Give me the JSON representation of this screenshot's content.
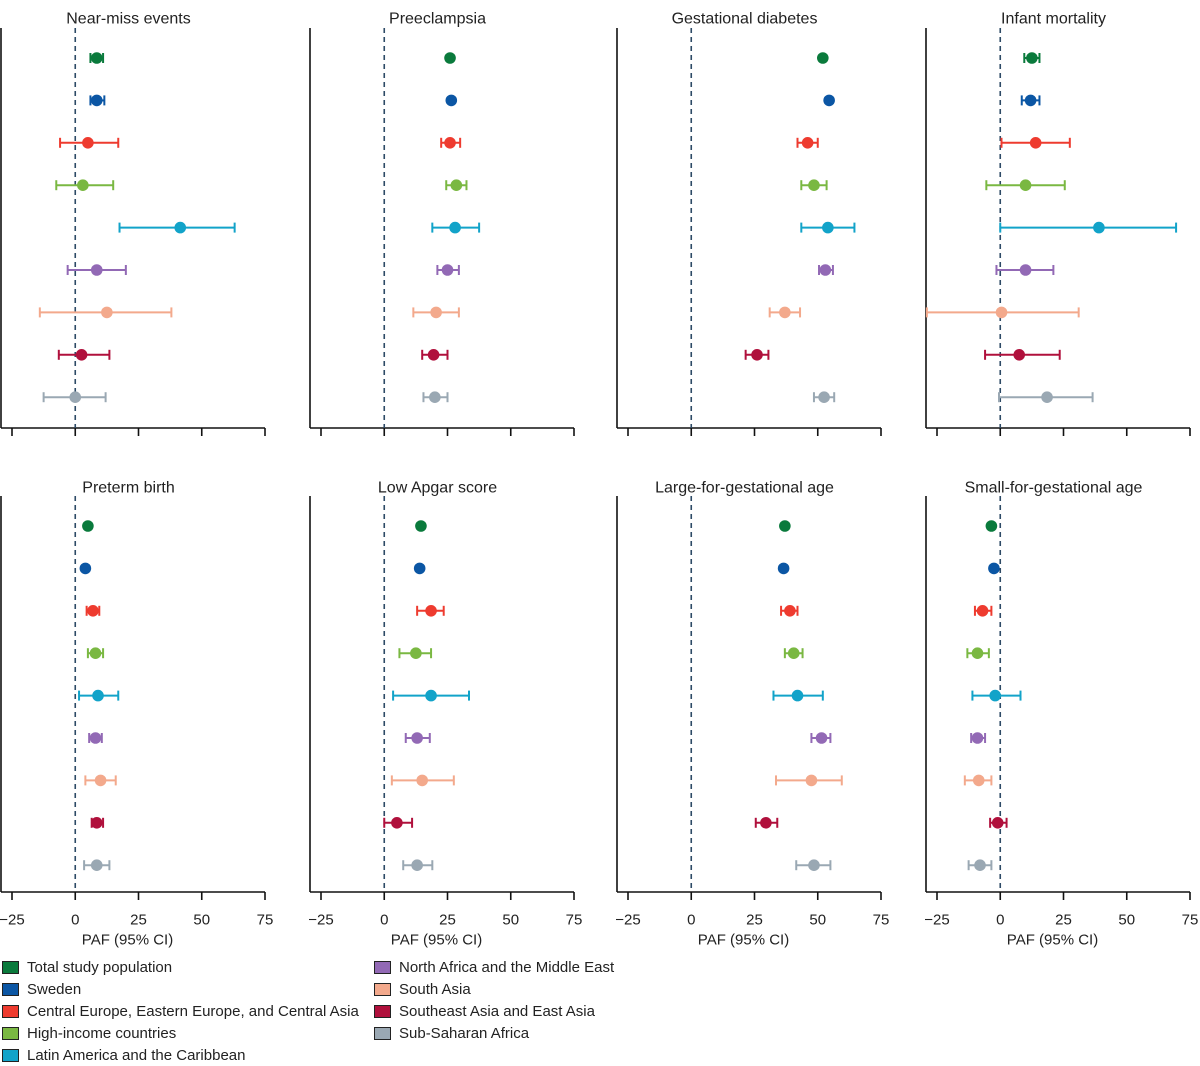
{
  "chart_data": {
    "type": "forest",
    "xlim": [
      -25,
      75
    ],
    "xticks": [
      -25,
      0,
      25,
      50,
      75
    ],
    "xlabel": "PAF (95% CI)",
    "groups": [
      {
        "name": "Total study population",
        "color": "#0a7a3c"
      },
      {
        "name": "Sweden",
        "color": "#0b56a4"
      },
      {
        "name": "Central Europe, Eastern Europe, and Central Asia",
        "color": "#ee3b2f"
      },
      {
        "name": "High-income countries",
        "color": "#7ab842"
      },
      {
        "name": "Latin America and the Caribbean",
        "color": "#12a3c9"
      },
      {
        "name": "North Africa and the Middle East",
        "color": "#9269b5"
      },
      {
        "name": "South Asia",
        "color": "#f3a98c"
      },
      {
        "name": "Southeast Asia and East Asia",
        "color": "#b0103c"
      },
      {
        "name": "Sub-Saharan Africa",
        "color": "#9aa8b3"
      }
    ],
    "panels": [
      {
        "title": "Near-miss events",
        "values": [
          {
            "est": 8.5,
            "lo": 6,
            "hi": 11
          },
          {
            "est": 8.5,
            "lo": 6,
            "hi": 11.5
          },
          {
            "est": 5,
            "lo": -6,
            "hi": 17
          },
          {
            "est": 3,
            "lo": -7.5,
            "hi": 15
          },
          {
            "est": 41.5,
            "lo": 17.5,
            "hi": 63
          },
          {
            "est": 8.5,
            "lo": -3,
            "hi": 20
          },
          {
            "est": 12.5,
            "lo": -14,
            "hi": 38
          },
          {
            "est": 2.5,
            "lo": -6.5,
            "hi": 13.5
          },
          {
            "est": 0,
            "lo": -12.5,
            "hi": 12
          }
        ]
      },
      {
        "title": "Preeclampsia",
        "values": [
          {
            "est": 26,
            "lo": 26,
            "hi": 26
          },
          {
            "est": 26.5,
            "lo": 26.5,
            "hi": 26.5
          },
          {
            "est": 26,
            "lo": 22.5,
            "hi": 30
          },
          {
            "est": 28.5,
            "lo": 24.5,
            "hi": 32.5
          },
          {
            "est": 28,
            "lo": 19,
            "hi": 37.5
          },
          {
            "est": 25,
            "lo": 21,
            "hi": 29.5
          },
          {
            "est": 20.5,
            "lo": 11.5,
            "hi": 29.5
          },
          {
            "est": 19.5,
            "lo": 15,
            "hi": 25
          },
          {
            "est": 20,
            "lo": 15.5,
            "hi": 25
          }
        ]
      },
      {
        "title": "Gestational diabetes",
        "values": [
          {
            "est": 52,
            "lo": 52,
            "hi": 52
          },
          {
            "est": 54.5,
            "lo": 54.5,
            "hi": 54.5
          },
          {
            "est": 46,
            "lo": 42,
            "hi": 50
          },
          {
            "est": 48.5,
            "lo": 43.5,
            "hi": 53.5
          },
          {
            "est": 54,
            "lo": 43.5,
            "hi": 64.5
          },
          {
            "est": 53,
            "lo": 50.5,
            "hi": 56
          },
          {
            "est": 37,
            "lo": 31,
            "hi": 43
          },
          {
            "est": 26,
            "lo": 21.5,
            "hi": 30.5
          },
          {
            "est": 52.5,
            "lo": 48.5,
            "hi": 56.5
          }
        ]
      },
      {
        "title": "Infant  mortality",
        "values": [
          {
            "est": 12.5,
            "lo": 9.5,
            "hi": 15.5
          },
          {
            "est": 12,
            "lo": 8.5,
            "hi": 15.5
          },
          {
            "est": 14,
            "lo": 0.5,
            "hi": 27.5
          },
          {
            "est": 10,
            "lo": -5.5,
            "hi": 25.5
          },
          {
            "est": 39,
            "lo": 0,
            "hi": 69.5
          },
          {
            "est": 10,
            "lo": -1.5,
            "hi": 21
          },
          {
            "est": 0.5,
            "lo": -29,
            "hi": 31
          },
          {
            "est": 7.5,
            "lo": -6,
            "hi": 23.5
          },
          {
            "est": 18.5,
            "lo": -0.5,
            "hi": 36.5
          }
        ]
      },
      {
        "title": "Preterm birth",
        "values": [
          {
            "est": 5,
            "lo": 5,
            "hi": 5
          },
          {
            "est": 4,
            "lo": 4,
            "hi": 4
          },
          {
            "est": 7,
            "lo": 4.5,
            "hi": 9.5
          },
          {
            "est": 8,
            "lo": 5,
            "hi": 11
          },
          {
            "est": 9,
            "lo": 1.5,
            "hi": 17
          },
          {
            "est": 8,
            "lo": 5.5,
            "hi": 10.5
          },
          {
            "est": 10,
            "lo": 4,
            "hi": 16
          },
          {
            "est": 8.5,
            "lo": 6.5,
            "hi": 11
          },
          {
            "est": 8.5,
            "lo": 3.5,
            "hi": 13.5
          }
        ]
      },
      {
        "title": "Low Apgar score",
        "values": [
          {
            "est": 14.5,
            "lo": 14.5,
            "hi": 14.5
          },
          {
            "est": 14,
            "lo": 14,
            "hi": 14
          },
          {
            "est": 18.5,
            "lo": 13,
            "hi": 23.5
          },
          {
            "est": 12.5,
            "lo": 6,
            "hi": 18.5
          },
          {
            "est": 18.5,
            "lo": 3.5,
            "hi": 33.5
          },
          {
            "est": 13,
            "lo": 8.5,
            "hi": 18
          },
          {
            "est": 15,
            "lo": 3,
            "hi": 27.5
          },
          {
            "est": 5,
            "lo": 0,
            "hi": 11
          },
          {
            "est": 13,
            "lo": 7.5,
            "hi": 19
          }
        ]
      },
      {
        "title": "Large-for-gestational age",
        "values": [
          {
            "est": 37,
            "lo": 37,
            "hi": 37
          },
          {
            "est": 36.5,
            "lo": 36.5,
            "hi": 36.5
          },
          {
            "est": 39,
            "lo": 35.5,
            "hi": 42
          },
          {
            "est": 40.5,
            "lo": 37,
            "hi": 44
          },
          {
            "est": 42,
            "lo": 32.5,
            "hi": 52
          },
          {
            "est": 51.5,
            "lo": 47.5,
            "hi": 55
          },
          {
            "est": 47.5,
            "lo": 33.5,
            "hi": 59.5
          },
          {
            "est": 29.5,
            "lo": 25.5,
            "hi": 34
          },
          {
            "est": 48.5,
            "lo": 41.5,
            "hi": 55
          }
        ]
      },
      {
        "title": "Small-for-gestational age",
        "values": [
          {
            "est": -3.5,
            "lo": -3.5,
            "hi": -3.5
          },
          {
            "est": -2.5,
            "lo": -2.5,
            "hi": -2.5
          },
          {
            "est": -7,
            "lo": -10,
            "hi": -3.5
          },
          {
            "est": -9,
            "lo": -13,
            "hi": -4.5
          },
          {
            "est": -2,
            "lo": -11,
            "hi": 8
          },
          {
            "est": -9,
            "lo": -11.5,
            "hi": -6
          },
          {
            "est": -8.5,
            "lo": -14,
            "hi": -3.5
          },
          {
            "est": -1,
            "lo": -4,
            "hi": 2.5
          },
          {
            "est": -8,
            "lo": -12.5,
            "hi": -3.5
          }
        ]
      }
    ]
  }
}
